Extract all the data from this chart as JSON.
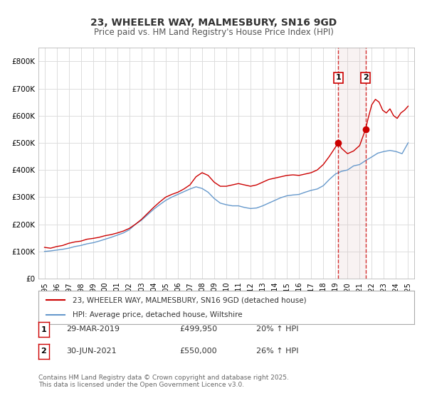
{
  "title": "23, WHEELER WAY, MALMESBURY, SN16 9GD",
  "subtitle": "Price paid vs. HM Land Registry's House Price Index (HPI)",
  "title_fontsize": 11,
  "subtitle_fontsize": 9,
  "background_color": "#ffffff",
  "plot_bg_color": "#ffffff",
  "grid_color": "#dddddd",
  "red_line_color": "#cc0000",
  "blue_line_color": "#6699cc",
  "marker1_date_x": 2019.24,
  "marker1_y": 499950,
  "marker2_date_x": 2021.49,
  "marker2_y": 550000,
  "vline1_x": 2019.24,
  "vline2_x": 2021.49,
  "shade_color": "#ddbbbb",
  "shade_alpha": 0.18,
  "ylim": [
    0,
    850000
  ],
  "xlim_left": 1994.5,
  "xlim_right": 2025.5,
  "ytick_values": [
    0,
    100000,
    200000,
    300000,
    400000,
    500000,
    600000,
    700000,
    800000
  ],
  "ytick_labels": [
    "£0",
    "£100K",
    "£200K",
    "£300K",
    "£400K",
    "£500K",
    "£600K",
    "£700K",
    "£800K"
  ],
  "xtick_years": [
    1995,
    1996,
    1997,
    1998,
    1999,
    2000,
    2001,
    2002,
    2003,
    2004,
    2005,
    2006,
    2007,
    2008,
    2009,
    2010,
    2011,
    2012,
    2013,
    2014,
    2015,
    2016,
    2017,
    2018,
    2019,
    2020,
    2021,
    2022,
    2023,
    2024,
    2025
  ],
  "legend_label_red": "23, WHEELER WAY, MALMESBURY, SN16 9GD (detached house)",
  "legend_label_blue": "HPI: Average price, detached house, Wiltshire",
  "table_entries": [
    {
      "num": "1",
      "date": "29-MAR-2019",
      "price": "£499,950",
      "change": "20% ↑ HPI"
    },
    {
      "num": "2",
      "date": "30-JUN-2021",
      "price": "£550,000",
      "change": "26% ↑ HPI"
    }
  ],
  "footnote": "Contains HM Land Registry data © Crown copyright and database right 2025.\nThis data is licensed under the Open Government Licence v3.0.",
  "red_series_x": [
    1995.0,
    1995.5,
    1996.0,
    1996.5,
    1997.0,
    1997.5,
    1998.0,
    1998.5,
    1999.0,
    1999.5,
    2000.0,
    2000.5,
    2001.0,
    2001.5,
    2002.0,
    2002.5,
    2003.0,
    2003.5,
    2004.0,
    2004.5,
    2005.0,
    2005.5,
    2006.0,
    2006.5,
    2007.0,
    2007.5,
    2008.0,
    2008.5,
    2009.0,
    2009.5,
    2010.0,
    2010.5,
    2011.0,
    2011.5,
    2012.0,
    2012.5,
    2013.0,
    2013.5,
    2014.0,
    2014.5,
    2015.0,
    2015.5,
    2016.0,
    2016.5,
    2017.0,
    2017.5,
    2018.0,
    2018.5,
    2019.24,
    2019.5,
    2020.0,
    2020.5,
    2021.0,
    2021.49,
    2021.7,
    2022.0,
    2022.3,
    2022.6,
    2022.9,
    2023.2,
    2023.5,
    2023.8,
    2024.1,
    2024.4,
    2024.7,
    2025.0
  ],
  "red_series_y": [
    115000,
    112000,
    118000,
    122000,
    130000,
    135000,
    138000,
    145000,
    148000,
    152000,
    158000,
    162000,
    168000,
    175000,
    185000,
    200000,
    218000,
    240000,
    262000,
    282000,
    300000,
    310000,
    318000,
    330000,
    345000,
    375000,
    390000,
    380000,
    355000,
    340000,
    340000,
    345000,
    350000,
    345000,
    340000,
    345000,
    355000,
    365000,
    370000,
    375000,
    380000,
    382000,
    380000,
    385000,
    390000,
    400000,
    420000,
    450000,
    499950,
    480000,
    460000,
    470000,
    490000,
    550000,
    590000,
    640000,
    660000,
    650000,
    620000,
    610000,
    625000,
    600000,
    590000,
    610000,
    620000,
    635000
  ],
  "blue_series_x": [
    1995.0,
    1995.5,
    1996.0,
    1996.5,
    1997.0,
    1997.5,
    1998.0,
    1998.5,
    1999.0,
    1999.5,
    2000.0,
    2000.5,
    2001.0,
    2001.5,
    2002.0,
    2002.5,
    2003.0,
    2003.5,
    2004.0,
    2004.5,
    2005.0,
    2005.5,
    2006.0,
    2006.5,
    2007.0,
    2007.5,
    2008.0,
    2008.5,
    2009.0,
    2009.5,
    2010.0,
    2010.5,
    2011.0,
    2011.5,
    2012.0,
    2012.5,
    2013.0,
    2013.5,
    2014.0,
    2014.5,
    2015.0,
    2015.5,
    2016.0,
    2016.5,
    2017.0,
    2017.5,
    2018.0,
    2018.5,
    2019.0,
    2019.5,
    2020.0,
    2020.5,
    2021.0,
    2021.5,
    2022.0,
    2022.5,
    2023.0,
    2023.5,
    2024.0,
    2024.5,
    2025.0
  ],
  "blue_series_y": [
    100000,
    102000,
    105000,
    108000,
    112000,
    118000,
    122000,
    128000,
    132000,
    138000,
    145000,
    152000,
    160000,
    168000,
    180000,
    200000,
    215000,
    235000,
    255000,
    272000,
    288000,
    300000,
    310000,
    320000,
    330000,
    338000,
    332000,
    318000,
    295000,
    278000,
    272000,
    268000,
    268000,
    262000,
    258000,
    260000,
    268000,
    278000,
    288000,
    298000,
    305000,
    308000,
    310000,
    318000,
    325000,
    330000,
    342000,
    365000,
    385000,
    395000,
    400000,
    415000,
    420000,
    435000,
    448000,
    462000,
    468000,
    472000,
    468000,
    460000,
    500000
  ]
}
